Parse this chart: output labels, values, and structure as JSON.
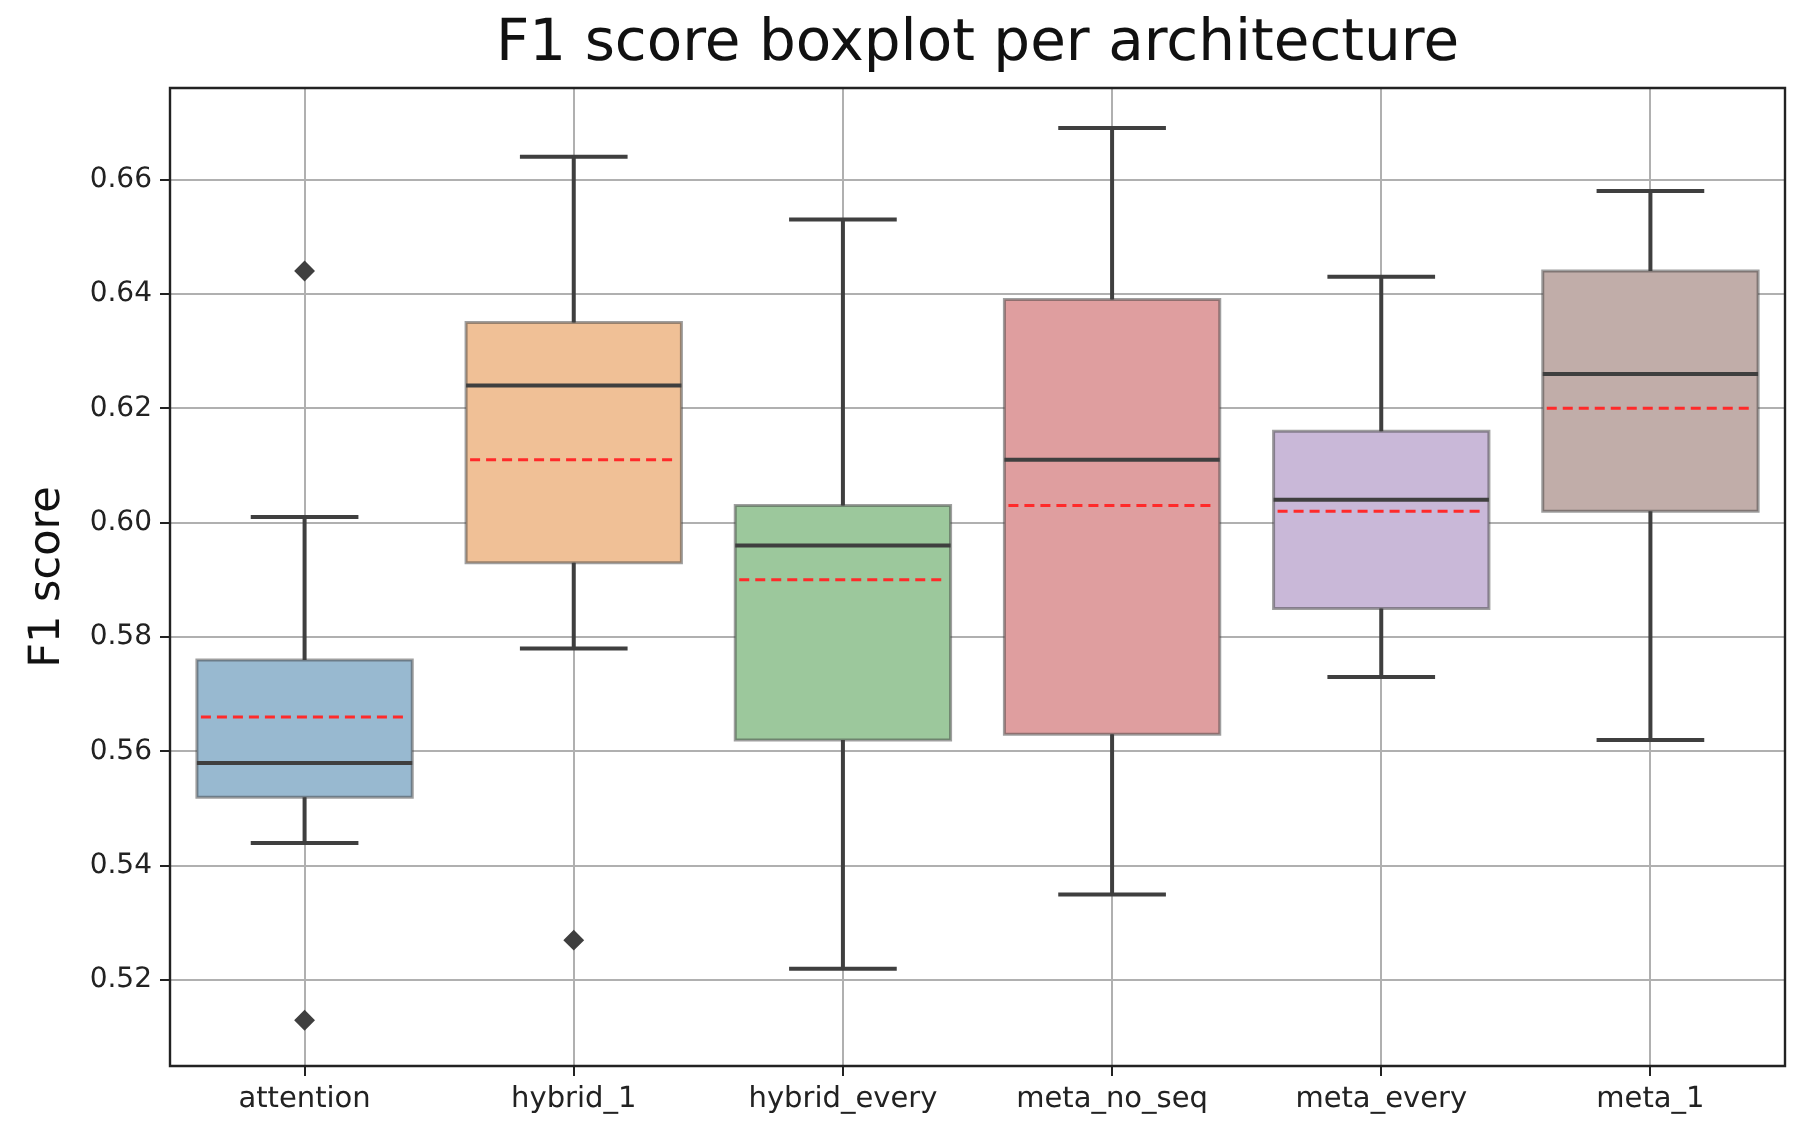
{
  "chart_data": {
    "type": "box",
    "title": "F1 score boxplot per architecture",
    "ylabel": "F1 score",
    "categories": [
      "attention",
      "hybrid_1",
      "hybrid_every",
      "meta_no_seq",
      "meta_every",
      "meta_1"
    ],
    "boxes": [
      {
        "low": 0.544,
        "q1": 0.552,
        "median": 0.558,
        "q3": 0.576,
        "high": 0.601,
        "mean": 0.566,
        "outliers": [
          0.513,
          0.644
        ]
      },
      {
        "low": 0.578,
        "q1": 0.593,
        "median": 0.624,
        "q3": 0.635,
        "high": 0.664,
        "mean": 0.611,
        "outliers": [
          0.527
        ]
      },
      {
        "low": 0.522,
        "q1": 0.562,
        "median": 0.596,
        "q3": 0.603,
        "high": 0.653,
        "mean": 0.59
      },
      {
        "low": 0.535,
        "q1": 0.563,
        "median": 0.611,
        "q3": 0.639,
        "high": 0.669,
        "mean": 0.603
      },
      {
        "low": 0.573,
        "q1": 0.585,
        "median": 0.604,
        "q3": 0.616,
        "high": 0.643,
        "mean": 0.602
      },
      {
        "low": 0.562,
        "q1": 0.602,
        "median": 0.626,
        "q3": 0.644,
        "high": 0.658,
        "mean": 0.62
      }
    ],
    "colors": [
      "#98b9d0",
      "#f0c096",
      "#9cc89c",
      "#df9e9f",
      "#c9b8d8",
      "#c1ada9"
    ],
    "ylim": [
      0.505,
      0.676
    ],
    "yticks": [
      0.52,
      0.54,
      0.56,
      0.58,
      {
        "value": 0.6,
        "label": "0.60"
      },
      0.62,
      0.64,
      0.66
    ],
    "grid": true,
    "marker": "diamond"
  }
}
